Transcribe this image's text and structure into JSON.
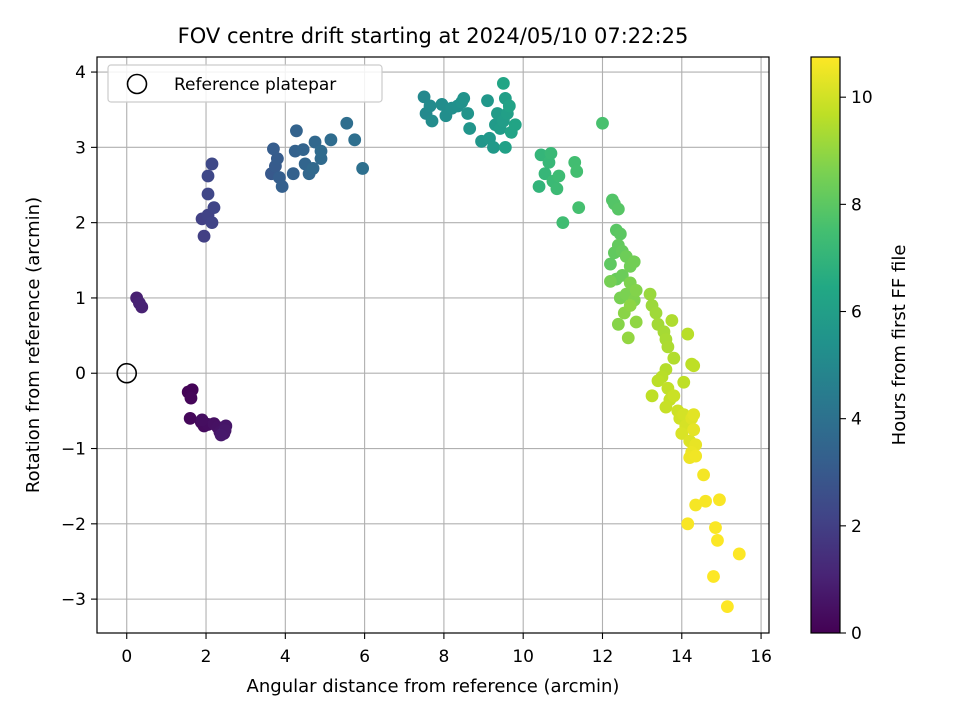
{
  "chart_data": {
    "type": "scatter",
    "title": "FOV centre drift starting at 2024/05/10 07:22:25",
    "xlabel": "Angular distance from reference (arcmin)",
    "ylabel": "Rotation from reference (arcmin)",
    "xlim": [
      -0.75,
      16.2
    ],
    "ylim": [
      -3.45,
      4.2
    ],
    "xticks": [
      "0",
      "2",
      "4",
      "6",
      "8",
      "10",
      "12",
      "14",
      "16"
    ],
    "xtick_values": [
      0,
      2,
      4,
      6,
      8,
      10,
      12,
      14,
      16
    ],
    "yticks": [
      "−3",
      "−2",
      "−1",
      "0",
      "1",
      "2",
      "3",
      "4"
    ],
    "ytick_values": [
      -3,
      -2,
      -1,
      0,
      1,
      2,
      3,
      4
    ],
    "grid": true,
    "legend": {
      "position": "top-left",
      "label": "Reference platepar"
    },
    "reference_point": [
      0,
      0
    ],
    "colorbar": {
      "label": "Hours from first FF file",
      "min": 0,
      "max": 10.75,
      "ticks": [
        "0",
        "2",
        "4",
        "6",
        "8",
        "10"
      ],
      "tick_values": [
        0,
        2,
        4,
        6,
        8,
        10
      ],
      "colormap": "viridis"
    },
    "points": [
      [
        1.55,
        -0.25,
        0.05
      ],
      [
        1.65,
        -0.22,
        0.1
      ],
      [
        1.62,
        -0.33,
        0.15
      ],
      [
        1.6,
        -0.6,
        0.2
      ],
      [
        1.88,
        -0.65,
        0.25
      ],
      [
        1.95,
        -0.7,
        0.3
      ],
      [
        2.05,
        -0.68,
        0.35
      ],
      [
        1.9,
        -0.62,
        0.4
      ],
      [
        2.2,
        -0.67,
        0.45
      ],
      [
        2.3,
        -0.72,
        0.5
      ],
      [
        2.35,
        -0.78,
        0.55
      ],
      [
        2.45,
        -0.8,
        0.6
      ],
      [
        2.5,
        -0.7,
        0.65
      ],
      [
        2.48,
        -0.76,
        0.7
      ],
      [
        2.38,
        -0.82,
        0.75
      ],
      [
        0.25,
        1.0,
        0.95
      ],
      [
        0.38,
        0.88,
        1.0
      ],
      [
        0.32,
        0.93,
        1.05
      ],
      [
        1.95,
        1.82,
        2.0
      ],
      [
        1.9,
        2.05,
        2.05
      ],
      [
        2.05,
        2.1,
        2.1
      ],
      [
        2.15,
        2.0,
        2.15
      ],
      [
        2.2,
        2.2,
        2.2
      ],
      [
        2.05,
        2.38,
        2.25
      ],
      [
        2.05,
        2.62,
        2.3
      ],
      [
        2.15,
        2.78,
        2.35
      ],
      [
        3.65,
        2.65,
        3.0
      ],
      [
        3.75,
        2.75,
        3.05
      ],
      [
        3.8,
        2.85,
        3.1
      ],
      [
        3.7,
        2.98,
        3.15
      ],
      [
        3.85,
        2.6,
        3.2
      ],
      [
        3.92,
        2.48,
        3.25
      ],
      [
        4.2,
        2.65,
        3.3
      ],
      [
        4.25,
        2.95,
        3.35
      ],
      [
        4.28,
        3.22,
        3.4
      ],
      [
        4.45,
        2.97,
        3.45
      ],
      [
        4.5,
        2.78,
        3.5
      ],
      [
        4.6,
        2.65,
        3.55
      ],
      [
        4.75,
        3.07,
        3.6
      ],
      [
        4.7,
        2.72,
        3.65
      ],
      [
        4.9,
        2.85,
        3.7
      ],
      [
        4.9,
        2.95,
        3.75
      ],
      [
        5.15,
        3.1,
        3.8
      ],
      [
        5.55,
        3.32,
        3.85
      ],
      [
        5.75,
        3.1,
        3.9
      ],
      [
        5.95,
        2.72,
        3.95
      ],
      [
        7.5,
        3.67,
        5.0
      ],
      [
        7.55,
        3.45,
        5.05
      ],
      [
        7.65,
        3.55,
        5.1
      ],
      [
        7.7,
        3.35,
        5.15
      ],
      [
        7.95,
        3.57,
        5.2
      ],
      [
        8.05,
        3.42,
        5.25
      ],
      [
        8.2,
        3.52,
        5.3
      ],
      [
        8.35,
        3.55,
        5.35
      ],
      [
        8.45,
        3.6,
        5.4
      ],
      [
        8.5,
        3.65,
        5.45
      ],
      [
        8.6,
        3.45,
        5.5
      ],
      [
        8.65,
        3.25,
        5.55
      ],
      [
        8.95,
        3.08,
        5.6
      ],
      [
        9.1,
        3.62,
        5.65
      ],
      [
        9.15,
        3.12,
        5.7
      ],
      [
        9.25,
        3.0,
        5.75
      ],
      [
        9.3,
        3.3,
        5.8
      ],
      [
        9.35,
        3.45,
        5.85
      ],
      [
        9.42,
        3.25,
        5.9
      ],
      [
        9.5,
        3.35,
        5.95
      ],
      [
        9.55,
        3.65,
        6.0
      ],
      [
        9.6,
        3.45,
        6.05
      ],
      [
        9.55,
        3.0,
        6.1
      ],
      [
        9.65,
        3.55,
        6.15
      ],
      [
        9.7,
        3.2,
        6.2
      ],
      [
        9.8,
        3.3,
        6.25
      ],
      [
        9.5,
        3.85,
        6.3
      ],
      [
        10.4,
        2.48,
        7.0
      ],
      [
        10.45,
        2.9,
        7.05
      ],
      [
        10.55,
        2.65,
        7.1
      ],
      [
        10.65,
        2.8,
        7.15
      ],
      [
        10.7,
        2.92,
        7.2
      ],
      [
        10.75,
        2.55,
        7.25
      ],
      [
        10.85,
        2.45,
        7.3
      ],
      [
        10.9,
        2.62,
        7.35
      ],
      [
        11.0,
        2.0,
        7.4
      ],
      [
        11.3,
        2.8,
        7.45
      ],
      [
        11.35,
        2.68,
        7.5
      ],
      [
        11.4,
        2.2,
        7.55
      ],
      [
        12.0,
        3.32,
        7.6
      ],
      [
        12.25,
        2.3,
        7.8
      ],
      [
        12.3,
        2.25,
        7.85
      ],
      [
        12.4,
        2.18,
        7.9
      ],
      [
        12.35,
        1.9,
        7.95
      ],
      [
        12.45,
        1.85,
        8.0
      ],
      [
        12.2,
        1.45,
        8.05
      ],
      [
        12.3,
        1.6,
        8.1
      ],
      [
        12.4,
        1.7,
        8.15
      ],
      [
        12.5,
        1.62,
        8.2
      ],
      [
        12.35,
        1.25,
        8.25
      ],
      [
        12.5,
        1.3,
        8.3
      ],
      [
        12.6,
        1.55,
        8.35
      ],
      [
        12.7,
        1.42,
        8.4
      ],
      [
        12.8,
        1.48,
        8.45
      ],
      [
        12.2,
        1.22,
        8.5
      ],
      [
        12.45,
        1.0,
        8.55
      ],
      [
        12.6,
        1.05,
        8.6
      ],
      [
        12.7,
        1.2,
        8.65
      ],
      [
        12.8,
        0.97,
        8.7
      ],
      [
        12.85,
        1.1,
        8.75
      ],
      [
        12.4,
        0.65,
        8.8
      ],
      [
        12.55,
        0.8,
        8.85
      ],
      [
        12.7,
        0.9,
        8.9
      ],
      [
        12.85,
        0.68,
        8.95
      ],
      [
        12.65,
        0.47,
        9.0
      ],
      [
        13.2,
        1.05,
        9.1
      ],
      [
        13.25,
        0.9,
        9.15
      ],
      [
        13.35,
        0.8,
        9.2
      ],
      [
        13.4,
        0.65,
        9.25
      ],
      [
        13.55,
        0.55,
        9.3
      ],
      [
        13.6,
        0.45,
        9.35
      ],
      [
        13.65,
        0.35,
        9.4
      ],
      [
        13.75,
        0.7,
        9.45
      ],
      [
        13.8,
        0.2,
        9.5
      ],
      [
        13.6,
        0.05,
        9.55
      ],
      [
        13.5,
        -0.05,
        9.6
      ],
      [
        13.4,
        -0.1,
        9.65
      ],
      [
        13.25,
        -0.3,
        9.7
      ],
      [
        13.65,
        -0.2,
        9.75
      ],
      [
        13.7,
        -0.35,
        9.8
      ],
      [
        13.6,
        -0.45,
        9.85
      ],
      [
        13.8,
        -0.3,
        9.9
      ],
      [
        13.9,
        -0.5,
        9.95
      ],
      [
        13.95,
        -0.6,
        10.0
      ],
      [
        14.05,
        -0.55,
        10.05
      ],
      [
        14.1,
        -0.7,
        10.1
      ],
      [
        14.0,
        -0.8,
        10.15
      ],
      [
        14.2,
        -0.9,
        10.2
      ],
      [
        14.25,
        -0.6,
        10.25
      ],
      [
        14.3,
        -0.55,
        10.3
      ],
      [
        14.3,
        -0.75,
        10.35
      ],
      [
        14.35,
        -0.95,
        10.4
      ],
      [
        14.25,
        -1.05,
        10.45
      ],
      [
        14.2,
        -1.12,
        10.5
      ],
      [
        14.35,
        -1.1,
        10.55
      ],
      [
        14.05,
        -0.12,
        9.7
      ],
      [
        14.15,
        0.52,
        9.6
      ],
      [
        14.25,
        0.12,
        9.65
      ],
      [
        14.3,
        0.1,
        9.7
      ],
      [
        14.55,
        -1.35,
        10.6
      ],
      [
        14.35,
        -1.75,
        10.62
      ],
      [
        14.6,
        -1.7,
        10.65
      ],
      [
        14.15,
        -2.0,
        10.67
      ],
      [
        14.85,
        -2.05,
        10.7
      ],
      [
        14.9,
        -2.22,
        10.72
      ],
      [
        14.95,
        -1.68,
        10.68
      ],
      [
        14.8,
        -2.7,
        10.74
      ],
      [
        15.15,
        -3.1,
        10.75
      ],
      [
        15.45,
        -2.4,
        10.73
      ]
    ]
  }
}
